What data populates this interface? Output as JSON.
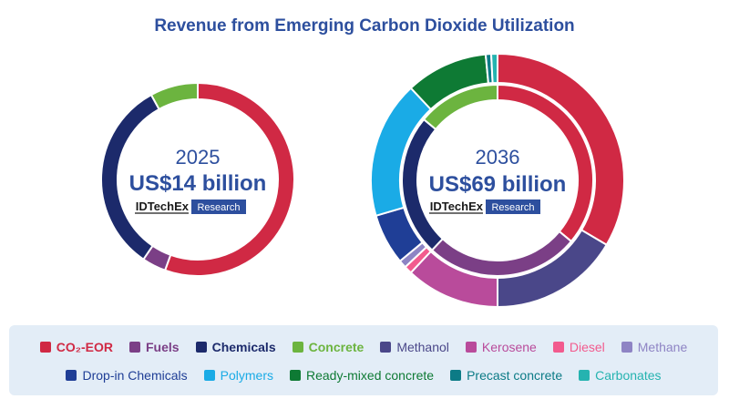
{
  "chart_data": {
    "type": "donut",
    "title": "Revenue from Emerging Carbon Dioxide Utilization",
    "categories": [
      "CO₂-EOR",
      "Fuels",
      "Chemicals",
      "Concrete",
      "Methanol",
      "Kerosene",
      "Diesel",
      "Methane",
      "Drop-in Chemicals",
      "Polymers",
      "Ready-mixed concrete",
      "Precast concrete",
      "Carbonates"
    ],
    "colors": {
      "CO₂-EOR": "#d02944",
      "Fuels": "#7b3f86",
      "Chemicals": "#1c2a6b",
      "Concrete": "#6cb43f",
      "Methanol": "#4a4789",
      "Kerosene": "#b94b9b",
      "Diesel": "#f25b8e",
      "Methane": "#8e84c4",
      "Drop-in Chemicals": "#1f3e96",
      "Polymers": "#1aabe6",
      "Ready-mixed concrete": "#0e7a34",
      "Precast concrete": "#0c7b86",
      "Carbonates": "#25b3b0"
    },
    "legend_label_colors": {
      "CO₂-EOR": "#d02944",
      "Fuels": "#7b3f86",
      "Chemicals": "#1c2a6b",
      "Concrete": "#6cb43f",
      "Methanol": "#4a4789",
      "Kerosene": "#b94b9b",
      "Diesel": "#f25b8e",
      "Methane": "#8e84c4",
      "Drop-in Chemicals": "#1f3e96",
      "Polymers": "#1aabe6",
      "Ready-mixed concrete": "#0e7a34",
      "Precast concrete": "#0c7b86",
      "Carbonates": "#25b3b0"
    },
    "charts": [
      {
        "year": "2025",
        "total": "US$14 billion",
        "rings": [
          {
            "ring": "single",
            "slices": [
              {
                "label": "CO₂-EOR",
                "value": 55.5
              },
              {
                "label": "Fuels",
                "value": 4.0
              },
              {
                "label": "Chemicals",
                "value": 32.5
              },
              {
                "label": "Concrete",
                "value": 8.0
              }
            ]
          }
        ]
      },
      {
        "year": "2036",
        "total": "US$69 billion",
        "rings": [
          {
            "ring": "inner",
            "slices": [
              {
                "label": "CO₂-EOR",
                "value": 36.0
              },
              {
                "label": "Fuels",
                "value": 26.0
              },
              {
                "label": "Chemicals",
                "value": 24.0
              },
              {
                "label": "Concrete",
                "value": 14.0
              }
            ]
          },
          {
            "ring": "outer",
            "slices": [
              {
                "label": "CO₂-EOR",
                "value": 33.5
              },
              {
                "label": "Methanol",
                "value": 16.5
              },
              {
                "label": "Kerosene",
                "value": 12.0
              },
              {
                "label": "Diesel",
                "value": 1.0
              },
              {
                "label": "Methane",
                "value": 1.0
              },
              {
                "label": "Drop-in Chemicals",
                "value": 6.5
              },
              {
                "label": "Polymers",
                "value": 17.5
              },
              {
                "label": "Ready-mixed concrete",
                "value": 10.5
              },
              {
                "label": "Precast concrete",
                "value": 0.7
              },
              {
                "label": "Carbonates",
                "value": 0.8
              }
            ]
          }
        ]
      }
    ],
    "brand": {
      "name": "IDTechEx",
      "tag": "Research"
    }
  },
  "legend": {
    "row1": [
      "CO₂-EOR",
      "Fuels",
      "Chemicals",
      "Concrete",
      "Methanol",
      "Kerosene",
      "Diesel",
      "Methane"
    ],
    "row2": [
      "Drop-in Chemicals",
      "Polymers",
      "Ready-mixed concrete",
      "Precast concrete",
      "Carbonates"
    ],
    "bold": [
      "CO₂-EOR",
      "Fuels",
      "Chemicals",
      "Concrete"
    ]
  }
}
